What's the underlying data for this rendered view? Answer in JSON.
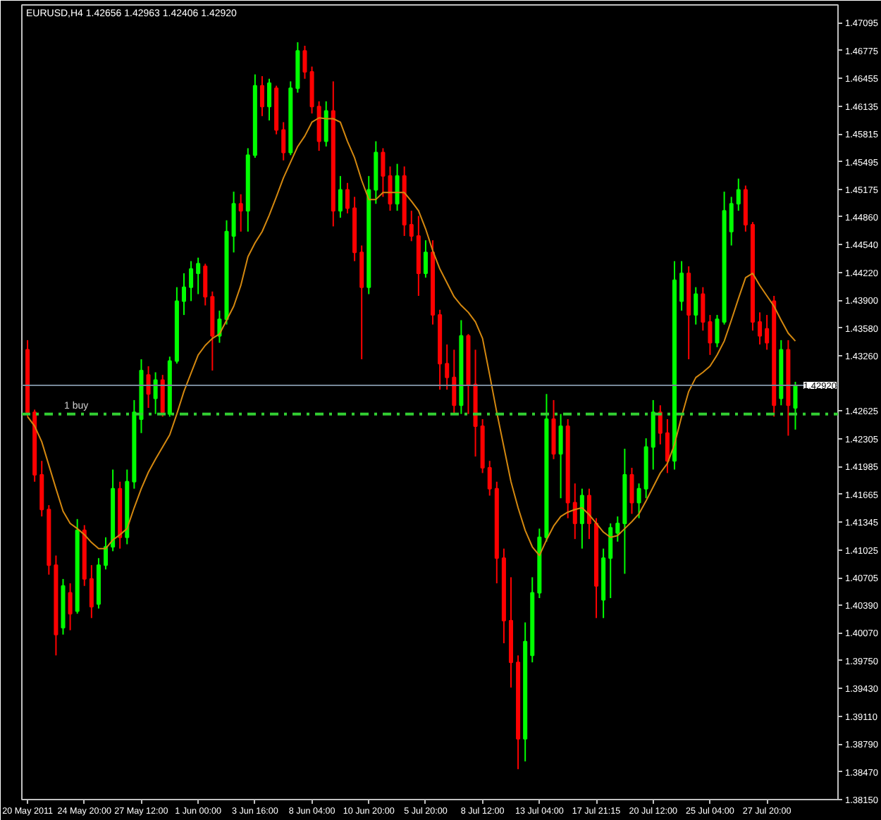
{
  "chart_data": {
    "type": "candlestick",
    "title": "EURUSD,H4 1.42656 1.42963 1.42406 1.42920",
    "categories": [
      "20 May 2011",
      null,
      null,
      null,
      null,
      null,
      null,
      null,
      "24 May 20:00",
      null,
      null,
      null,
      null,
      null,
      null,
      null,
      "27 May 12:00",
      null,
      null,
      null,
      null,
      null,
      null,
      null,
      "1 Jun 00:00",
      null,
      null,
      null,
      null,
      null,
      null,
      null,
      "3 Jun 16:00",
      null,
      null,
      null,
      null,
      null,
      null,
      null,
      "8 Jun 04:00",
      null,
      null,
      null,
      null,
      null,
      null,
      null,
      "10 Jun 20:00",
      null,
      null,
      null,
      null,
      null,
      null,
      null,
      "5 Jul 20:00",
      null,
      null,
      null,
      null,
      null,
      null,
      null,
      "8 Jul 12:00",
      null,
      null,
      null,
      null,
      null,
      null,
      null,
      "13 Jul 04:00",
      null,
      null,
      null,
      null,
      null,
      null,
      null,
      "17 Jul 21:15",
      null,
      null,
      null,
      null,
      null,
      null,
      null,
      "20 Jul 12:00",
      null,
      null,
      null,
      null,
      null,
      null,
      null,
      "25 Jul 04:00",
      null,
      null,
      null,
      null,
      null,
      null,
      null,
      "27 Jul 20:00",
      null,
      null,
      null,
      null
    ],
    "ohlc": [
      [
        1.4333,
        1.4344,
        1.4256,
        1.4261
      ],
      [
        1.4261,
        1.4264,
        1.4181,
        1.4189
      ],
      [
        1.4189,
        1.4205,
        1.4141,
        1.4149
      ],
      [
        1.4149,
        1.4154,
        1.4074,
        1.4085
      ],
      [
        1.4085,
        1.4096,
        1.3981,
        1.4005
      ],
      [
        1.4013,
        1.4069,
        1.4005,
        1.4061
      ],
      [
        1.4053,
        1.4064,
        1.401,
        1.4029
      ],
      [
        1.4032,
        1.4138,
        1.4029,
        1.4125
      ],
      [
        1.4125,
        1.4131,
        1.4061,
        1.4069
      ],
      [
        1.4069,
        1.4085,
        1.4024,
        1.4037
      ],
      [
        1.404,
        1.4093,
        1.4035,
        1.4085
      ],
      [
        1.4085,
        1.4117,
        1.408,
        1.4106
      ],
      [
        1.4106,
        1.4195,
        1.4101,
        1.4173
      ],
      [
        1.4173,
        1.4181,
        1.4104,
        1.4117
      ],
      [
        1.4117,
        1.4195,
        1.4109,
        1.4181
      ],
      [
        1.4181,
        1.4275,
        1.4173,
        1.4261
      ],
      [
        1.4253,
        1.4322,
        1.4237,
        1.4309
      ],
      [
        1.4304,
        1.4314,
        1.4266,
        1.4282
      ],
      [
        1.4277,
        1.4307,
        1.4259,
        1.4298
      ],
      [
        1.4298,
        1.4304,
        1.4256,
        1.4261
      ],
      [
        1.4259,
        1.4325,
        1.4256,
        1.432
      ],
      [
        1.432,
        1.4405,
        1.4317,
        1.4389
      ],
      [
        1.4389,
        1.4421,
        1.4373,
        1.4405
      ],
      [
        1.4405,
        1.4435,
        1.4389,
        1.4426
      ],
      [
        1.4421,
        1.4439,
        1.4397,
        1.4432
      ],
      [
        1.4429,
        1.4432,
        1.4384,
        1.4394
      ],
      [
        1.4394,
        1.44,
        1.4309,
        1.4349
      ],
      [
        1.4349,
        1.4378,
        1.4341,
        1.4368
      ],
      [
        1.4368,
        1.4482,
        1.4362,
        1.4469
      ],
      [
        1.4464,
        1.4515,
        1.4445,
        1.4501
      ],
      [
        1.4501,
        1.4512,
        1.4469,
        1.4493
      ],
      [
        1.4493,
        1.4565,
        1.4469,
        1.4557
      ],
      [
        1.4557,
        1.465,
        1.4554,
        1.4637
      ],
      [
        1.4637,
        1.4648,
        1.4602,
        1.4613
      ],
      [
        1.4613,
        1.4645,
        1.4597,
        1.464
      ],
      [
        1.4634,
        1.4637,
        1.4581,
        1.4586
      ],
      [
        1.4586,
        1.4595,
        1.4551,
        1.456
      ],
      [
        1.456,
        1.4642,
        1.4557,
        1.4634
      ],
      [
        1.4634,
        1.4687,
        1.4629,
        1.4677
      ],
      [
        1.4677,
        1.4683,
        1.4645,
        1.4653
      ],
      [
        1.4653,
        1.4659,
        1.4605,
        1.4613
      ],
      [
        1.4613,
        1.4619,
        1.4562,
        1.4573
      ],
      [
        1.4573,
        1.4619,
        1.4567,
        1.4608
      ],
      [
        1.4608,
        1.4642,
        1.4475,
        1.4493
      ],
      [
        1.4493,
        1.4533,
        1.4485,
        1.4517
      ],
      [
        1.4517,
        1.4525,
        1.449,
        1.4496
      ],
      [
        1.4496,
        1.4509,
        1.4435,
        1.4445
      ],
      [
        1.4445,
        1.4453,
        1.4322,
        1.4405
      ],
      [
        1.4405,
        1.4533,
        1.4397,
        1.4517
      ],
      [
        1.4517,
        1.4573,
        1.4501,
        1.456
      ],
      [
        1.456,
        1.4565,
        1.4509,
        1.4533
      ],
      [
        1.4533,
        1.4544,
        1.4493,
        1.4501
      ],
      [
        1.4501,
        1.4547,
        1.4493,
        1.4533
      ],
      [
        1.4533,
        1.4544,
        1.4464,
        1.4477
      ],
      [
        1.4477,
        1.4493,
        1.4458,
        1.4464
      ],
      [
        1.4464,
        1.4487,
        1.4395,
        1.4421
      ],
      [
        1.4421,
        1.4459,
        1.4416,
        1.4445
      ],
      [
        1.4445,
        1.4459,
        1.4362,
        1.4373
      ],
      [
        1.4373,
        1.4379,
        1.4287,
        1.4317
      ],
      [
        1.4317,
        1.4339,
        1.4287,
        1.4301
      ],
      [
        1.4301,
        1.4333,
        1.4259,
        1.4269
      ],
      [
        1.4269,
        1.4367,
        1.4259,
        1.4349
      ],
      [
        1.4349,
        1.4351,
        1.4259,
        1.4293
      ],
      [
        1.4293,
        1.4333,
        1.421,
        1.4245
      ],
      [
        1.4245,
        1.4253,
        1.4191,
        1.4197
      ],
      [
        1.4197,
        1.4205,
        1.4165,
        1.4173
      ],
      [
        1.4173,
        1.4181,
        1.4064,
        1.4093
      ],
      [
        1.4093,
        1.4104,
        1.3995,
        1.4021
      ],
      [
        1.4021,
        1.4071,
        1.3944,
        1.3973
      ],
      [
        1.3973,
        1.3981,
        1.385,
        1.3885
      ],
      [
        1.3885,
        1.4019,
        1.3859,
        1.3997
      ],
      [
        1.3981,
        1.4071,
        1.3973,
        1.4053
      ],
      [
        1.4053,
        1.4127,
        1.4047,
        1.4117
      ],
      [
        1.4117,
        1.4282,
        1.4112,
        1.4253
      ],
      [
        1.4253,
        1.4275,
        1.4207,
        1.4213
      ],
      [
        1.4213,
        1.4259,
        1.4162,
        1.4245
      ],
      [
        1.4245,
        1.4253,
        1.4139,
        1.4157
      ],
      [
        1.4157,
        1.4179,
        1.4115,
        1.4133
      ],
      [
        1.4133,
        1.4173,
        1.4104,
        1.4165
      ],
      [
        1.4165,
        1.4173,
        1.4115,
        1.4133
      ],
      [
        1.4133,
        1.4139,
        1.4024,
        1.4061
      ],
      [
        1.4045,
        1.4104,
        1.4024,
        1.4093
      ],
      [
        1.4093,
        1.4133,
        1.4047,
        1.4128
      ],
      [
        1.4122,
        1.4141,
        1.4112,
        1.4133
      ],
      [
        1.4133,
        1.4219,
        1.4075,
        1.4189
      ],
      [
        1.4189,
        1.4197,
        1.4144,
        1.4157
      ],
      [
        1.4157,
        1.4179,
        1.4139,
        1.4173
      ],
      [
        1.4173,
        1.4231,
        1.4162,
        1.4221
      ],
      [
        1.4221,
        1.4275,
        1.4195,
        1.4261
      ],
      [
        1.4261,
        1.4269,
        1.4224,
        1.4237
      ],
      [
        1.4237,
        1.4253,
        1.4191,
        1.4205
      ],
      [
        1.4205,
        1.4435,
        1.4195,
        1.4413
      ],
      [
        1.4389,
        1.4435,
        1.4378,
        1.4421
      ],
      [
        1.4421,
        1.4429,
        1.4322,
        1.4373
      ],
      [
        1.4373,
        1.4405,
        1.4362,
        1.4397
      ],
      [
        1.4397,
        1.4405,
        1.4355,
        1.4365
      ],
      [
        1.4365,
        1.4373,
        1.4327,
        1.4341
      ],
      [
        1.4341,
        1.4373,
        1.4336,
        1.4368
      ],
      [
        1.4365,
        1.4515,
        1.4362,
        1.4493
      ],
      [
        1.4469,
        1.4509,
        1.4453,
        1.4501
      ],
      [
        1.4501,
        1.453,
        1.4493,
        1.4517
      ],
      [
        1.4517,
        1.4522,
        1.4469,
        1.4477
      ],
      [
        1.4477,
        1.448,
        1.4355,
        1.4365
      ],
      [
        1.4365,
        1.4376,
        1.4339,
        1.4349
      ],
      [
        1.4357,
        1.4373,
        1.4333,
        1.4341
      ],
      [
        1.4389,
        1.4395,
        1.4256,
        1.4269
      ],
      [
        1.4277,
        1.4344,
        1.4269,
        1.4333
      ],
      [
        1.4333,
        1.4344,
        1.4234,
        1.4269
      ],
      [
        1.4266,
        1.4296,
        1.4241,
        1.4292
      ]
    ],
    "colors": [
      "#ff0000",
      "#ff0000",
      "#ff0000",
      "#ff0000",
      "#ff0000",
      "#00ff00",
      "#ff0000",
      "#00ff00",
      "#ff0000",
      "#ff0000",
      "#00ff00",
      "#00ff00",
      "#00ff00",
      "#ff0000",
      "#00ff00",
      "#00ff00",
      "#00ff00",
      "#ff0000",
      "#00ff00",
      "#ff0000",
      "#00ff00",
      "#00ff00",
      "#00ff00",
      "#00ff00",
      "#00ff00",
      "#ff0000",
      "#ff0000",
      "#00ff00",
      "#00ff00",
      "#00ff00",
      "#ff0000",
      "#00ff00",
      "#00ff00",
      "#ff0000",
      "#00ff00",
      "#ff0000",
      "#ff0000",
      "#00ff00",
      "#00ff00",
      "#ff0000",
      "#ff0000",
      "#ff0000",
      "#00ff00",
      "#ff0000",
      "#00ff00",
      "#ff0000",
      "#ff0000",
      "#ff0000",
      "#00ff00",
      "#00ff00",
      "#ff0000",
      "#ff0000",
      "#00ff00",
      "#ff0000",
      "#ff0000",
      "#ff0000",
      "#00ff00",
      "#ff0000",
      "#ff0000",
      "#ff0000",
      "#ff0000",
      "#00ff00",
      "#ff0000",
      "#ff0000",
      "#ff0000",
      "#ff0000",
      "#ff0000",
      "#ff0000",
      "#ff0000",
      "#ff0000",
      "#00ff00",
      "#00ff00",
      "#00ff00",
      "#00ff00",
      "#ff0000",
      "#00ff00",
      "#ff0000",
      "#ff0000",
      "#00ff00",
      "#ff0000",
      "#ff0000",
      "#00ff00",
      "#00ff00",
      "#00ff00",
      "#00ff00",
      "#ff0000",
      "#00ff00",
      "#00ff00",
      "#00ff00",
      "#ff0000",
      "#ff0000",
      "#00ff00",
      "#00ff00",
      "#ff0000",
      "#00ff00",
      "#ff0000",
      "#ff0000",
      "#00ff00",
      "#00ff00",
      "#00ff00",
      "#00ff00",
      "#ff0000",
      "#ff0000",
      "#ff0000",
      "#ff0000",
      "#ff0000",
      "#00ff00",
      "#ff0000",
      "#00ff00"
    ],
    "series": [
      {
        "type": "line",
        "color": "#d4880f",
        "values": [
          1.4256,
          1.4245,
          1.4227,
          1.42,
          1.4173,
          1.4147,
          1.4133,
          1.4127,
          1.412,
          1.4111,
          1.4104,
          1.4104,
          1.4114,
          1.412,
          1.4127,
          1.4151,
          1.4173,
          1.4192,
          1.4207,
          1.4221,
          1.4235,
          1.4259,
          1.4285,
          1.4306,
          1.4327,
          1.4338,
          1.4346,
          1.4351,
          1.4367,
          1.4383,
          1.4407,
          1.444,
          1.4456,
          1.4469,
          1.4488,
          1.4509,
          1.4531,
          1.4549,
          1.4567,
          1.4579,
          1.4595,
          1.46,
          1.4599,
          1.4599,
          1.4595,
          1.4573,
          1.4554,
          1.4528,
          1.4506,
          1.4506,
          1.4514,
          1.4514,
          1.4514,
          1.4514,
          1.4504,
          1.4493,
          1.4472,
          1.4447,
          1.4426,
          1.441,
          1.4394,
          1.4384,
          1.4376,
          1.4365,
          1.4346,
          1.4304,
          1.4261,
          1.4221,
          1.4181,
          1.4151,
          1.4125,
          1.4106,
          1.4096,
          1.4114,
          1.413,
          1.4141,
          1.4146,
          1.4149,
          1.4151,
          1.4143,
          1.4133,
          1.4123,
          1.4117,
          1.4119,
          1.4127,
          1.4135,
          1.4144,
          1.4159,
          1.4175,
          1.4191,
          1.4202,
          1.4224,
          1.4256,
          1.4285,
          1.4301,
          1.4307,
          1.4314,
          1.4327,
          1.4343,
          1.4367,
          1.4392,
          1.4416,
          1.4421,
          1.4407,
          1.4395,
          1.4383,
          1.4367,
          1.4352,
          1.4343
        ]
      }
    ],
    "ylim": [
      1.3815,
      1.473
    ],
    "yticks": [
      1.47095,
      1.46775,
      1.46455,
      1.46135,
      1.45815,
      1.45495,
      1.45175,
      {
        "value": 1.4486,
        "label": "1.44860"
      },
      {
        "value": 1.4454,
        "label": "1.44540"
      },
      {
        "value": 1.4422,
        "label": "1.44220"
      },
      {
        "value": 1.439,
        "label": "1.43900"
      },
      {
        "value": 1.4358,
        "label": "1.43580"
      },
      {
        "value": 1.4326,
        "label": "1.43260"
      },
      1.42625,
      1.42305,
      1.41985,
      1.41665,
      1.41345,
      1.41025,
      1.40705,
      {
        "value": 1.4039,
        "label": "1.40390"
      },
      {
        "value": 1.4007,
        "label": "1.40070"
      },
      {
        "value": 1.3975,
        "label": "1.39750"
      },
      {
        "value": 1.3943,
        "label": "1.39430"
      },
      {
        "value": 1.3911,
        "label": "1.39110"
      },
      {
        "value": 1.3879,
        "label": "1.38790"
      },
      {
        "value": 1.3847,
        "label": "1.38470"
      },
      {
        "value": 1.3815,
        "label": "1.38150"
      }
    ],
    "ref_lines": [
      {
        "axis": "y",
        "value": 1.4292,
        "label": "1.42920",
        "color": "#778899",
        "line_style": "solid"
      },
      {
        "axis": "y",
        "value": 1.4259,
        "label": "1 buy",
        "color": "#32cd32",
        "line_style": "dashdot"
      }
    ],
    "grid": false
  }
}
